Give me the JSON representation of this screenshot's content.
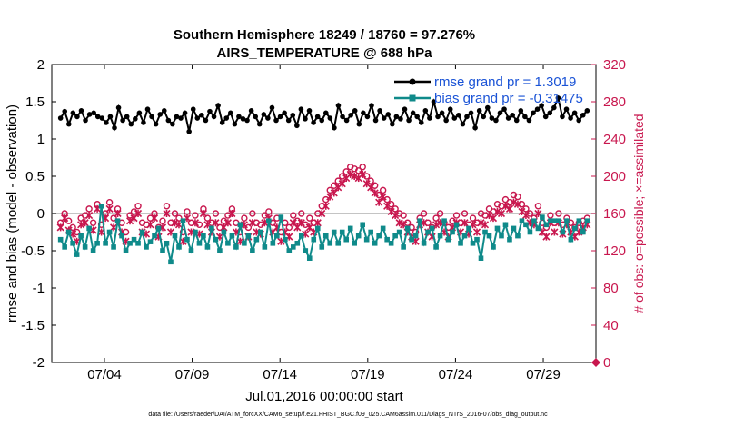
{
  "chart_data": {
    "type": "line",
    "title_line1": "Southern Hemisphere 18249 / 18760 = 97.276%",
    "title_line2": "AIRS_TEMPERATURE @ 688 hPa",
    "xlabel": "Jul.01,2016 00:00:00 start",
    "ylabel_left": "rmse and bias (model - observation)",
    "ylabel_right": "# of obs: o=possible; ×=assimilated",
    "ylim_left": [
      -2,
      2
    ],
    "ylim_right": [
      0,
      320
    ],
    "xlim_days": [
      1.0,
      32.0
    ],
    "left_ticks": [
      "2",
      "1.5",
      "1",
      "0.5",
      "0",
      "-0.5",
      "-1",
      "-1.5",
      "-2"
    ],
    "right_ticks": [
      "320",
      "280",
      "240",
      "200",
      "160",
      "120",
      "80",
      "40",
      "0"
    ],
    "x_ticks": [
      {
        "day": 4,
        "label": "07/04"
      },
      {
        "day": 9,
        "label": "07/09"
      },
      {
        "day": 14,
        "label": "07/14"
      },
      {
        "day": 19,
        "label": "07/19"
      },
      {
        "day": 24,
        "label": "07/24"
      },
      {
        "day": 29,
        "label": "07/29"
      }
    ],
    "legend": [
      {
        "name": "rmse grand pr = 1.3019",
        "color": "#000000"
      },
      {
        "name": "bias grand pr = -0.31475",
        "color": "#0f8a8a"
      }
    ],
    "series": [
      {
        "name": "rmse",
        "color": "#000000",
        "values": [
          1.28,
          1.37,
          1.2,
          1.35,
          1.3,
          1.38,
          1.25,
          1.33,
          1.35,
          1.3,
          1.28,
          1.22,
          1.3,
          1.15,
          1.42,
          1.25,
          1.3,
          1.2,
          1.27,
          1.35,
          1.22,
          1.4,
          1.3,
          1.2,
          1.33,
          1.38,
          1.25,
          1.2,
          1.3,
          1.28,
          1.35,
          1.1,
          1.4,
          1.28,
          1.32,
          1.25,
          1.37,
          1.3,
          1.45,
          1.22,
          1.28,
          1.35,
          1.2,
          1.3,
          1.27,
          1.25,
          1.38,
          1.3,
          1.2,
          1.33,
          1.28,
          1.42,
          1.25,
          1.3,
          1.35,
          1.25,
          1.32,
          1.18,
          1.4,
          1.27,
          1.38,
          1.22,
          1.3,
          1.25,
          1.35,
          1.28,
          1.15,
          1.45,
          1.3,
          1.25,
          1.32,
          1.38,
          1.2,
          1.35,
          1.3,
          1.45,
          1.25,
          1.38,
          1.28,
          1.33,
          1.2,
          1.3,
          1.27,
          1.4,
          1.25,
          1.35,
          1.3,
          1.22,
          1.38,
          1.28,
          1.5,
          1.3,
          1.35,
          1.25,
          1.4,
          1.28,
          1.32,
          1.2,
          1.3,
          1.35,
          1.15,
          1.38,
          1.3,
          1.42,
          1.28,
          1.25,
          1.35,
          1.4,
          1.28,
          1.32,
          1.25,
          1.38,
          1.3,
          1.25,
          1.35,
          1.4,
          1.45,
          1.3,
          1.35,
          1.42,
          1.55,
          1.3,
          1.4,
          1.28,
          1.35,
          1.25,
          1.32,
          1.38
        ]
      },
      {
        "name": "bias",
        "color": "#0f8a8a",
        "values": [
          -0.35,
          -0.45,
          -0.25,
          -0.4,
          -0.55,
          -0.3,
          -0.45,
          -0.2,
          -0.5,
          -0.4,
          0.1,
          -0.4,
          -0.25,
          -0.45,
          -0.1,
          -0.3,
          -0.5,
          -0.4,
          -0.35,
          -0.4,
          -0.25,
          -0.45,
          -0.38,
          -0.3,
          -0.2,
          -0.5,
          -0.4,
          -0.65,
          -0.3,
          -0.45,
          -0.1,
          -0.35,
          -0.5,
          -0.25,
          -0.4,
          -0.3,
          -0.45,
          -0.2,
          -0.35,
          -0.5,
          -0.25,
          -0.4,
          -0.3,
          -0.45,
          -0.15,
          -0.4,
          -0.3,
          -0.5,
          -0.35,
          -0.25,
          -0.45,
          -0.1,
          -0.4,
          -0.3,
          -0.05,
          -0.35,
          -0.5,
          -0.45,
          -0.4,
          -0.3,
          -0.5,
          -0.6,
          -0.35,
          -0.2,
          -0.45,
          -0.3,
          -0.4,
          -0.25,
          -0.4,
          -0.25,
          -0.35,
          -0.2,
          -0.4,
          -0.3,
          -0.15,
          -0.35,
          -0.25,
          -0.4,
          -0.3,
          -0.2,
          -0.35,
          -0.4,
          -0.3,
          -0.25,
          -0.45,
          -0.2,
          -0.35,
          -0.3,
          -0.1,
          -0.4,
          -0.25,
          -0.2,
          -0.45,
          -0.3,
          -0.1,
          -0.35,
          -0.25,
          -0.15,
          -0.4,
          -0.3,
          -0.2,
          -0.4,
          -0.35,
          -0.6,
          -0.25,
          -0.3,
          -0.45,
          -0.2,
          -0.3,
          -0.15,
          -0.35,
          -0.2,
          -0.3,
          -0.1,
          -0.15,
          -0.25,
          -0.1,
          -0.2,
          -0.05,
          -0.15,
          -0.1,
          -0.1,
          -0.1,
          -0.25,
          -0.1,
          -0.35,
          -0.2,
          -0.1,
          -0.25,
          -0.1
        ]
      },
      {
        "name": "# possible (o)",
        "color": "#c8174e",
        "values": [
          150,
          160,
          152,
          145,
          140,
          155,
          158,
          165,
          150,
          170,
          148,
          160,
          172,
          155,
          165,
          150,
          140,
          158,
          162,
          168,
          150,
          148,
          155,
          160,
          145,
          152,
          168,
          150,
          160,
          155,
          140,
          162,
          150,
          158,
          148,
          165,
          155,
          150,
          160,
          145,
          152,
          158,
          165,
          150,
          140,
          155,
          145,
          160,
          150,
          148,
          158,
          162,
          150,
          155,
          140,
          150,
          145,
          158,
          152,
          160,
          148,
          155,
          150,
          160,
          168,
          175,
          185,
          190,
          195,
          200,
          205,
          210,
          208,
          206,
          210,
          200,
          195,
          190,
          180,
          185,
          175,
          170,
          165,
          160,
          158,
          150,
          145,
          140,
          155,
          160,
          150,
          145,
          155,
          160,
          150,
          145,
          152,
          158,
          150,
          160,
          148,
          155,
          150,
          160,
          158,
          165,
          162,
          170,
          168,
          175,
          172,
          180,
          178,
          170,
          165,
          160,
          155,
          168,
          150,
          145,
          158,
          150,
          160,
          148,
          155,
          150,
          145,
          150,
          152,
          155
        ]
      },
      {
        "name": "# assimilated (x)",
        "color": "#c8174e",
        "values": [
          145,
          155,
          142,
          138,
          130,
          148,
          150,
          158,
          142,
          165,
          140,
          155,
          165,
          145,
          160,
          140,
          130,
          152,
          155,
          160,
          140,
          138,
          148,
          155,
          135,
          145,
          160,
          140,
          150,
          148,
          130,
          155,
          140,
          150,
          138,
          160,
          148,
          140,
          150,
          135,
          145,
          150,
          160,
          140,
          130,
          148,
          135,
          150,
          140,
          138,
          150,
          155,
          140,
          145,
          130,
          140,
          135,
          150,
          145,
          150,
          138,
          145,
          140,
          150,
          160,
          168,
          178,
          182,
          188,
          192,
          198,
          202,
          200,
          198,
          202,
          192,
          188,
          182,
          172,
          178,
          168,
          162,
          158,
          150,
          148,
          140,
          135,
          130,
          148,
          150,
          140,
          135,
          148,
          150,
          140,
          135,
          145,
          150,
          140,
          150,
          138,
          148,
          140,
          150,
          148,
          158,
          155,
          162,
          160,
          168,
          165,
          172,
          170,
          162,
          158,
          150,
          148,
          160,
          140,
          135,
          150,
          140,
          150,
          138,
          148,
          140,
          135,
          140,
          145,
          148
        ]
      }
    ]
  },
  "footer_text": "data file: /Users/raeder/DAI/ATM_forcXX/CAM6_setup/f.e21.FHIST_BGC.f09_025.CAM6assim.011/Diags_NTrS_2016-07/obs_diag_output.nc"
}
